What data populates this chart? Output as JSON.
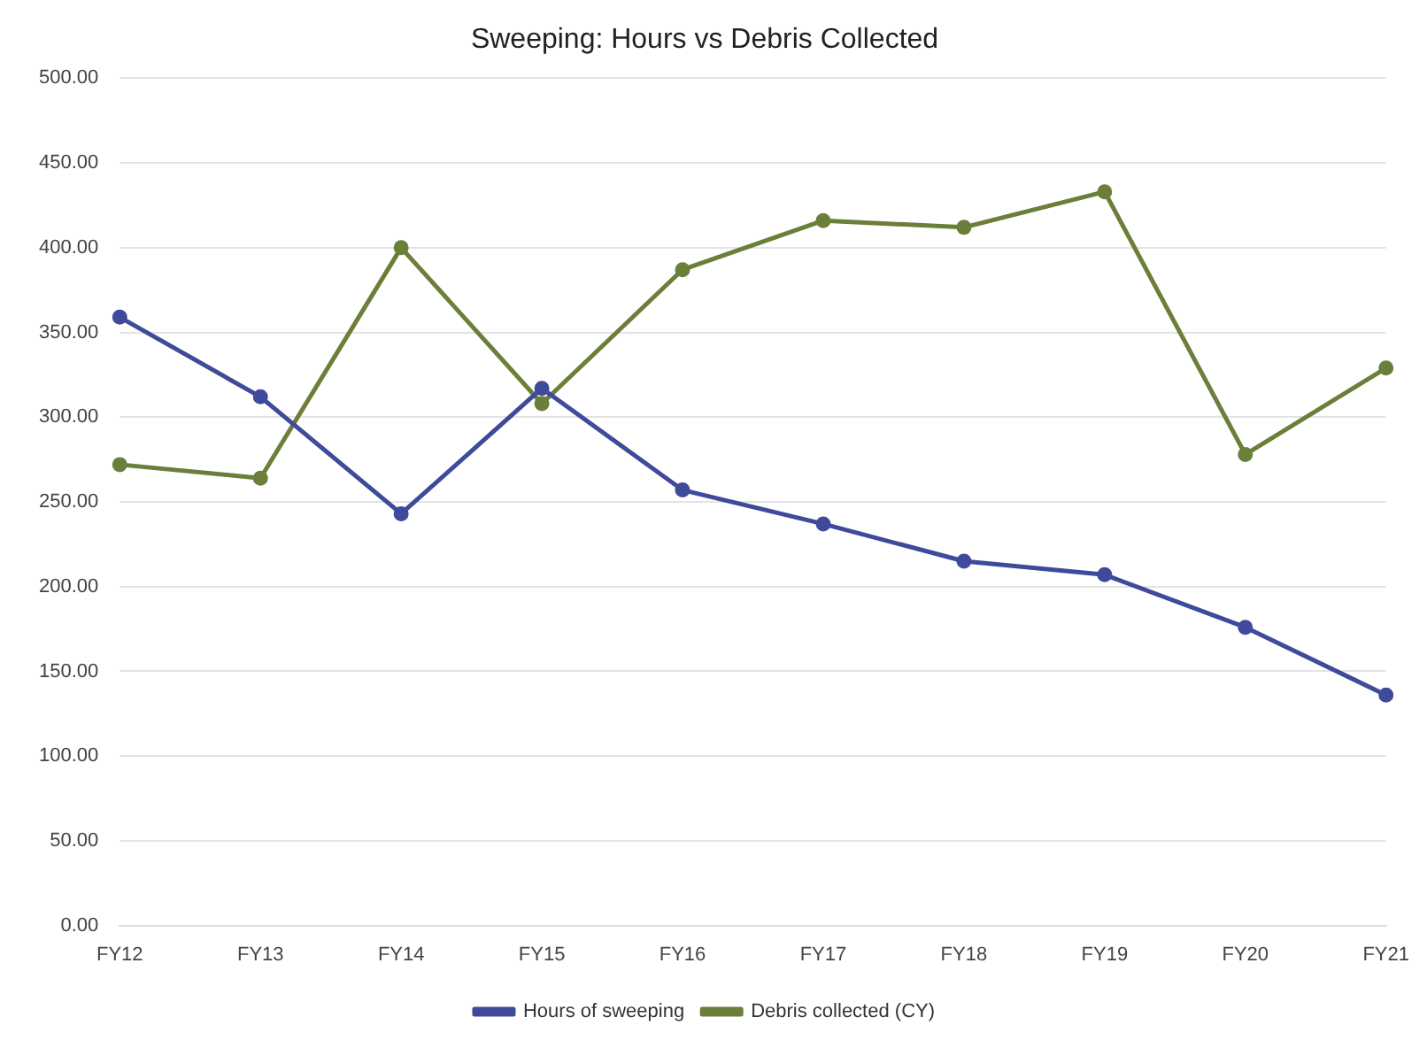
{
  "chart_data": {
    "type": "line",
    "title": "Sweeping: Hours vs Debris Collected",
    "categories": [
      "FY12",
      "FY13",
      "FY14",
      "FY15",
      "FY16",
      "FY17",
      "FY18",
      "FY19",
      "FY20",
      "FY21"
    ],
    "series": [
      {
        "name": "Hours of sweeping",
        "color": "#3f4a9a",
        "values": [
          359,
          312,
          243,
          317,
          257,
          237,
          215,
          207,
          176,
          136
        ]
      },
      {
        "name": "Debris collected (CY)",
        "color": "#6b7f3a",
        "values": [
          272,
          264,
          400,
          308,
          387,
          416,
          412,
          433,
          278,
          329
        ]
      }
    ],
    "ylim": [
      0,
      500
    ],
    "yticks": [
      {
        "value": 0,
        "label": "0.00"
      },
      {
        "value": 50,
        "label": "50.00"
      },
      {
        "value": 100,
        "label": "100.00"
      },
      {
        "value": 150,
        "label": "150.00"
      },
      {
        "value": 200,
        "label": "200.00"
      },
      {
        "value": 250,
        "label": "250.00"
      },
      {
        "value": 300,
        "label": "300.00"
      },
      {
        "value": 350,
        "label": "350.00"
      },
      {
        "value": 400,
        "label": "400.00"
      },
      {
        "value": 450,
        "label": "450.00"
      },
      {
        "value": 500,
        "label": "500.00"
      }
    ],
    "grid": "y",
    "legend": "bottom",
    "marker": "circle",
    "line_style": "solid"
  }
}
